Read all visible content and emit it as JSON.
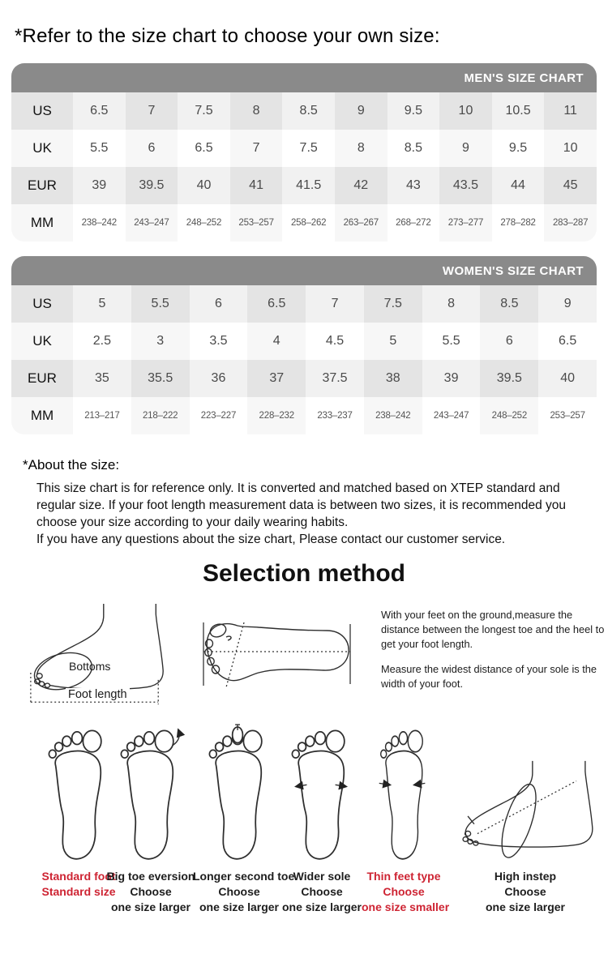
{
  "page": {
    "title": "*Refer to the size chart to choose your own size:"
  },
  "men_chart": {
    "header": "MEN'S SIZE CHART",
    "rows": [
      {
        "label": "US",
        "values": [
          "6.5",
          "7",
          "7.5",
          "8",
          "8.5",
          "9",
          "9.5",
          "10",
          "10.5",
          "11"
        ]
      },
      {
        "label": "UK",
        "values": [
          "5.5",
          "6",
          "6.5",
          "7",
          "7.5",
          "8",
          "8.5",
          "9",
          "9.5",
          "10"
        ]
      },
      {
        "label": "EUR",
        "values": [
          "39",
          "39.5",
          "40",
          "41",
          "41.5",
          "42",
          "43",
          "43.5",
          "44",
          "45"
        ]
      },
      {
        "label": "MM",
        "values": [
          "238–242",
          "243–247",
          "248–252",
          "253–257",
          "258–262",
          "263–267",
          "268–272",
          "273–277",
          "278–282",
          "283–287"
        ]
      }
    ]
  },
  "women_chart": {
    "header": "WOMEN'S SIZE CHART",
    "rows": [
      {
        "label": "US",
        "values": [
          "5",
          "5.5",
          "6",
          "6.5",
          "7",
          "7.5",
          "8",
          "8.5",
          "9"
        ]
      },
      {
        "label": "UK",
        "values": [
          "2.5",
          "3",
          "3.5",
          "4",
          "4.5",
          "5",
          "5.5",
          "6",
          "6.5"
        ]
      },
      {
        "label": "EUR",
        "values": [
          "35",
          "35.5",
          "36",
          "37",
          "37.5",
          "38",
          "39",
          "39.5",
          "40"
        ]
      },
      {
        "label": "MM",
        "values": [
          "213–217",
          "218–222",
          "223–227",
          "228–232",
          "233–237",
          "238–242",
          "243–247",
          "248–252",
          "253–257"
        ]
      }
    ]
  },
  "about": {
    "title": "*About the size:",
    "line1": "This size chart is for reference only. It is converted and matched based on XTEP standard and regular size. If your foot length measurement data is between two sizes, it is recommended you choose your size according to your daily wearing habits.",
    "line2": "If you have any questions about the size chart, Please contact our customer service."
  },
  "selection": {
    "title": "Selection method",
    "bottoms_label": "Bottoms",
    "foot_length_label": "Foot length",
    "measure_tip1": "With your feet on the ground,measure the distance between the longest toe and the heel to get your foot length.",
    "measure_tip2": "Measure the widest distance of your sole is the width of your foot.",
    "foot_types": [
      {
        "lines": [
          "Standard foot",
          "Standard size",
          ""
        ],
        "color": "#ce2433"
      },
      {
        "lines": [
          "Big toe eversion",
          "Choose",
          "one size larger"
        ],
        "color": "#1d1d1d"
      },
      {
        "lines": [
          "Longer second toe",
          "Choose",
          "one size larger"
        ],
        "color": "#1d1d1d"
      },
      {
        "lines": [
          "Wider sole",
          "Choose",
          "one size larger"
        ],
        "color": "#1d1d1d"
      },
      {
        "lines": [
          "Thin feet type",
          "Choose",
          "one size smaller"
        ],
        "color": "#ce2433"
      },
      {
        "lines": [
          "High instep",
          "Choose",
          "one size larger"
        ],
        "color": "#1d1d1d"
      }
    ]
  },
  "colors": {
    "accent_red": "#ce2433",
    "chart_header_bg": "#8a8a8a",
    "cell_gray_dark": "#e4e4e4",
    "cell_gray_light": "#f1f1f1"
  }
}
